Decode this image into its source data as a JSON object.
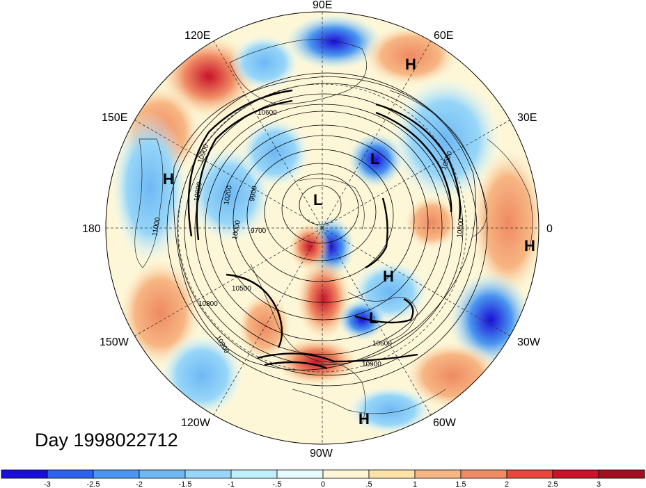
{
  "title": "Day 1998022712",
  "longitude_labels": [
    "90E",
    "60E",
    "30E",
    "0",
    "30W",
    "60W",
    "90W",
    "120W",
    "150W",
    "180",
    "150E",
    "120E"
  ],
  "pressure_centers": [
    {
      "id": "h-60e",
      "label": "H"
    },
    {
      "id": "h-north-pacific",
      "label": "H"
    },
    {
      "id": "h-0",
      "label": "H"
    },
    {
      "id": "h-atlantic",
      "label": "H"
    },
    {
      "id": "h-60w",
      "label": "H"
    },
    {
      "id": "l-siberia",
      "label": "L"
    },
    {
      "id": "l-pole",
      "label": "L"
    },
    {
      "id": "l-atlantic",
      "label": "L"
    }
  ],
  "contour_labels": [
    "10600",
    "10900",
    "10800",
    "10200",
    "10000",
    "9900",
    "9700",
    "10500",
    "10800",
    "10900",
    "10600",
    "10900",
    "10800",
    "10500",
    "11000"
  ],
  "colorbar": {
    "tick_labels": [
      "-3",
      "-2.5",
      "-2",
      "-1.5",
      "-1",
      "-.5",
      "0",
      ".5",
      "1",
      "1.5",
      "2",
      "2.5",
      "3"
    ],
    "colors": [
      "#1a0fd6",
      "#2c63e8",
      "#4a96f0",
      "#6eb8f4",
      "#97d6f8",
      "#bff0fb",
      "#e6fbfd",
      "#fdf7d8",
      "#fde3a8",
      "#f7b683",
      "#ef8a63",
      "#e7473d",
      "#c9132a",
      "#a01020"
    ]
  }
}
